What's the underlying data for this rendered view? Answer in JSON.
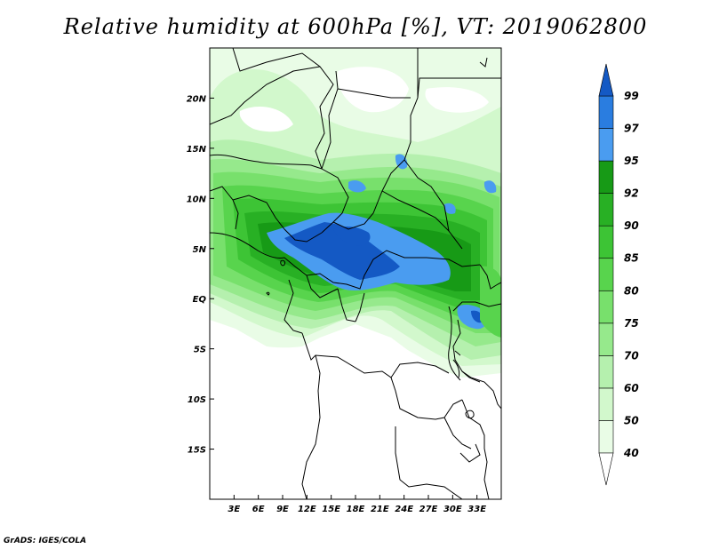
{
  "title": "Relative humidity at 600hPa [%], VT: 2019062800",
  "credit": "GrADS: IGES/COLA",
  "map": {
    "lon_range": [
      0,
      36
    ],
    "lat_range": [
      -20,
      25
    ],
    "x_ticks": [
      {
        "lon": 3,
        "label": "3E"
      },
      {
        "lon": 6,
        "label": "6E"
      },
      {
        "lon": 9,
        "label": "9E"
      },
      {
        "lon": 12,
        "label": "12E"
      },
      {
        "lon": 15,
        "label": "15E"
      },
      {
        "lon": 18,
        "label": "18E"
      },
      {
        "lon": 21,
        "label": "21E"
      },
      {
        "lon": 24,
        "label": "24E"
      },
      {
        "lon": 27,
        "label": "27E"
      },
      {
        "lon": 30,
        "label": "30E"
      },
      {
        "lon": 33,
        "label": "33E"
      }
    ],
    "y_ticks": [
      {
        "lat": 20,
        "label": "20N"
      },
      {
        "lat": 15,
        "label": "15N"
      },
      {
        "lat": 10,
        "label": "10N"
      },
      {
        "lat": 5,
        "label": "5N"
      },
      {
        "lat": 0,
        "label": "EQ"
      },
      {
        "lat": -5,
        "label": "5S"
      },
      {
        "lat": -10,
        "label": "10S"
      },
      {
        "lat": -15,
        "label": "15S"
      }
    ]
  },
  "colorbar": {
    "levels": [
      {
        "label": "40",
        "color": "#e9fce6"
      },
      {
        "label": "50",
        "color": "#d2f8cc"
      },
      {
        "label": "60",
        "color": "#b5f0ae"
      },
      {
        "label": "70",
        "color": "#96e98c"
      },
      {
        "label": "75",
        "color": "#78e06c"
      },
      {
        "label": "80",
        "color": "#58d44d"
      },
      {
        "label": "85",
        "color": "#3dc435"
      },
      {
        "label": "90",
        "color": "#28b024"
      },
      {
        "label": "92",
        "color": "#179a16"
      },
      {
        "label": "95",
        "color": "#4a9cf0"
      },
      {
        "label": "97",
        "color": "#2a7de0"
      },
      {
        "label": "99",
        "color": "#1459c4"
      }
    ]
  }
}
